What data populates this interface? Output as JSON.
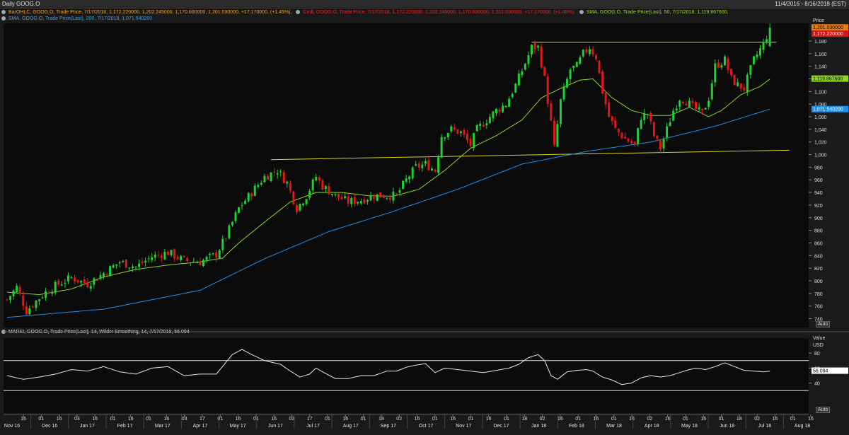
{
  "header": {
    "title": "Daily GOOG.O",
    "date_range": "11/4/2016 - 8/16/2018 (EST)"
  },
  "legends": {
    "bar_ohlc": "BarOHLC, GOOG.O, Trade Price,  7/17/2018, 1,172.220000, 1,202.245000, 1,170.600000, 1,201.030000, +17.170000, (+1.45%),",
    "candle": "Cndl, GOOG.O, Trade Price,  7/17/2018, 1,172.220000, 1,202.245000, 1,170.600000, 1,201.030000, +17.170000, (+1.45%),",
    "sma50": "SMA, GOOG.O, Trade Price(Last),  50, 7/17/2018, 1,119.867600,",
    "sma200": "SMA, GOOG.O, Trade Price(Last),  200, 7/17/2018, 1,071.540200",
    "rsi": "MARSI, GOOG.O, Trade Price(Last),  14, Wilder Smoothing, 14, 7/17/2018, 56.094"
  },
  "price_axis": {
    "title": "Price",
    "currency": "USD",
    "auto_label": "Auto",
    "badges": {
      "close": "1,201.030000",
      "open": "1,172.220000",
      "sma50": "1,119.867600",
      "sma200": "1,071.540200"
    }
  },
  "rsi_axis": {
    "title": "Value",
    "currency": "USD",
    "auto_label": "Auto",
    "badge": "56.094"
  },
  "colors": {
    "up": "#1fd12e",
    "down": "#e01818",
    "sma50": "#8fd61a",
    "sma200": "#1e8fe8",
    "trendline": "#d9d921",
    "rsi": "#e8e8e8",
    "badge_close": "#e87d0e",
    "badge_open": "#d11414",
    "badge_sma50": "#8fd61a",
    "badge_sma200": "#1e8fe8"
  },
  "chart_data": [
    {
      "type": "candlestick",
      "series_name": "GOOG.O",
      "x_axis": {
        "day_ticks": [
          "16",
          "01",
          "16",
          "03",
          "16",
          "01",
          "16",
          "01",
          "16",
          "03",
          "17",
          "01",
          "16",
          "01",
          "16",
          "03",
          "17",
          "01",
          "16",
          "01",
          "18",
          "02",
          "16",
          "01",
          "16",
          "01",
          "16",
          "01",
          "18",
          "02",
          "16",
          "01",
          "16",
          "01",
          "16",
          "02",
          "16",
          "01",
          "16",
          "01",
          "18",
          "02",
          "16",
          "01",
          "16"
        ],
        "month_labels": [
          "Nov 16",
          "Dec 16",
          "Jan 17",
          "Feb 17",
          "Mar 17",
          "Apr 17",
          "May 17",
          "Jun 17",
          "Jul 17",
          "Aug 17",
          "Sep 17",
          "Oct 17",
          "Nov 17",
          "Dec 17",
          "Jan 18",
          "Feb 18",
          "Mar 18",
          "Apr 18",
          "May 18",
          "Jun 18",
          "Jul 18",
          "Aug 18"
        ]
      },
      "y_ticks": [
        "1,180",
        "1,160",
        "1,140",
        "1,120",
        "1,100",
        "1,080",
        "1,060",
        "1,040",
        "1,020",
        "1,000",
        "980",
        "960",
        "940",
        "920",
        "900",
        "880",
        "860",
        "840",
        "820",
        "800",
        "780",
        "760",
        "740"
      ],
      "ylim": [
        726,
        1208
      ],
      "price_anchors": [
        [
          0,
          770
        ],
        [
          3,
          790
        ],
        [
          6,
          752
        ],
        [
          9,
          768
        ],
        [
          12,
          782
        ],
        [
          16,
          795
        ],
        [
          20,
          805
        ],
        [
          25,
          795
        ],
        [
          30,
          812
        ],
        [
          35,
          830
        ],
        [
          40,
          822
        ],
        [
          45,
          838
        ],
        [
          50,
          845
        ],
        [
          55,
          832
        ],
        [
          60,
          830
        ],
        [
          65,
          842
        ],
        [
          68,
          870
        ],
        [
          72,
          915
        ],
        [
          76,
          940
        ],
        [
          80,
          965
        ],
        [
          84,
          975
        ],
        [
          87,
          955
        ],
        [
          90,
          915
        ],
        [
          93,
          935
        ],
        [
          96,
          965
        ],
        [
          98,
          950
        ],
        [
          102,
          935
        ],
        [
          106,
          925
        ],
        [
          110,
          928
        ],
        [
          114,
          935
        ],
        [
          118,
          935
        ],
        [
          121,
          935
        ],
        [
          124,
          960
        ],
        [
          127,
          980
        ],
        [
          130,
          985
        ],
        [
          133,
          975
        ],
        [
          135,
          1030
        ],
        [
          138,
          1040
        ],
        [
          141,
          1035
        ],
        [
          144,
          1015
        ],
        [
          146,
          1040
        ],
        [
          149,
          1055
        ],
        [
          152,
          1070
        ],
        [
          155,
          1080
        ],
        [
          158,
          1110
        ],
        [
          161,
          1145
        ],
        [
          163,
          1170
        ],
        [
          165,
          1170
        ],
        [
          167,
          1120
        ],
        [
          169,
          1050
        ],
        [
          170,
          1010
        ],
        [
          172,
          1085
        ],
        [
          175,
          1135
        ],
        [
          177,
          1140
        ],
        [
          179,
          1160
        ],
        [
          181,
          1170
        ],
        [
          183,
          1155
        ],
        [
          185,
          1100
        ],
        [
          187,
          1060
        ],
        [
          189,
          1040
        ],
        [
          192,
          1025
        ],
        [
          195,
          1015
        ],
        [
          197,
          1060
        ],
        [
          199,
          1065
        ],
        [
          201,
          1030
        ],
        [
          203,
          1010
        ],
        [
          205,
          1040
        ],
        [
          207,
          1070
        ],
        [
          209,
          1090
        ],
        [
          211,
          1085
        ],
        [
          213,
          1075
        ],
        [
          216,
          1065
        ],
        [
          218,
          1090
        ],
        [
          220,
          1140
        ],
        [
          223,
          1150
        ],
        [
          225,
          1120
        ],
        [
          227,
          1110
        ],
        [
          229,
          1105
        ],
        [
          232,
          1150
        ],
        [
          235,
          1175
        ],
        [
          237,
          1201
        ]
      ],
      "sma50_anchors": [
        [
          0,
          782
        ],
        [
          10,
          778
        ],
        [
          20,
          787
        ],
        [
          30,
          806
        ],
        [
          40,
          818
        ],
        [
          50,
          825
        ],
        [
          60,
          830
        ],
        [
          67,
          836
        ],
        [
          72,
          860
        ],
        [
          80,
          893
        ],
        [
          88,
          925
        ],
        [
          96,
          940
        ],
        [
          104,
          940
        ],
        [
          112,
          935
        ],
        [
          120,
          934
        ],
        [
          128,
          945
        ],
        [
          136,
          975
        ],
        [
          144,
          1010
        ],
        [
          152,
          1030
        ],
        [
          160,
          1055
        ],
        [
          166,
          1090
        ],
        [
          172,
          1105
        ],
        [
          178,
          1118
        ],
        [
          182,
          1120
        ],
        [
          188,
          1090
        ],
        [
          194,
          1070
        ],
        [
          200,
          1062
        ],
        [
          206,
          1062
        ],
        [
          212,
          1075
        ],
        [
          218,
          1060
        ],
        [
          222,
          1070
        ],
        [
          228,
          1095
        ],
        [
          234,
          1108
        ],
        [
          237,
          1120
        ]
      ],
      "sma200_anchors": [
        [
          0,
          742
        ],
        [
          30,
          755
        ],
        [
          60,
          785
        ],
        [
          80,
          835
        ],
        [
          100,
          878
        ],
        [
          120,
          910
        ],
        [
          140,
          945
        ],
        [
          160,
          985
        ],
        [
          180,
          1005
        ],
        [
          200,
          1020
        ],
        [
          220,
          1045
        ],
        [
          237,
          1072
        ]
      ],
      "trendlines": [
        {
          "from": [
            82,
            992
          ],
          "to": [
            243,
            1007
          ]
        },
        {
          "from": [
            163,
            1178
          ],
          "to": [
            239,
            1178
          ]
        }
      ]
    },
    {
      "type": "line",
      "series_name": "MARSI",
      "ylim": [
        0,
        100
      ],
      "y_ticks": [
        80,
        60,
        40
      ],
      "reference_lines": [
        70,
        30
      ],
      "rsi_anchors": [
        [
          0,
          50
        ],
        [
          5,
          45
        ],
        [
          10,
          48
        ],
        [
          15,
          52
        ],
        [
          20,
          58
        ],
        [
          25,
          56
        ],
        [
          30,
          62
        ],
        [
          35,
          55
        ],
        [
          40,
          52
        ],
        [
          45,
          60
        ],
        [
          50,
          62
        ],
        [
          55,
          50
        ],
        [
          60,
          52
        ],
        [
          65,
          52
        ],
        [
          70,
          78
        ],
        [
          73,
          85
        ],
        [
          76,
          78
        ],
        [
          80,
          70
        ],
        [
          85,
          65
        ],
        [
          88,
          56
        ],
        [
          91,
          48
        ],
        [
          94,
          52
        ],
        [
          96,
          60
        ],
        [
          98,
          55
        ],
        [
          102,
          46
        ],
        [
          106,
          46
        ],
        [
          110,
          50
        ],
        [
          114,
          50
        ],
        [
          118,
          56
        ],
        [
          121,
          56
        ],
        [
          124,
          61
        ],
        [
          127,
          64
        ],
        [
          130,
          66
        ],
        [
          133,
          54
        ],
        [
          136,
          60
        ],
        [
          140,
          58
        ],
        [
          144,
          56
        ],
        [
          148,
          54
        ],
        [
          152,
          57
        ],
        [
          156,
          60
        ],
        [
          159,
          65
        ],
        [
          162,
          74
        ],
        [
          165,
          78
        ],
        [
          167,
          70
        ],
        [
          169,
          50
        ],
        [
          171,
          45
        ],
        [
          174,
          55
        ],
        [
          177,
          57
        ],
        [
          180,
          58
        ],
        [
          182,
          56
        ],
        [
          185,
          48
        ],
        [
          188,
          44
        ],
        [
          191,
          38
        ],
        [
          194,
          40
        ],
        [
          197,
          47
        ],
        [
          200,
          50
        ],
        [
          203,
          48
        ],
        [
          206,
          50
        ],
        [
          209,
          54
        ],
        [
          212,
          58
        ],
        [
          214,
          60
        ],
        [
          217,
          58
        ],
        [
          220,
          62
        ],
        [
          223,
          67
        ],
        [
          226,
          62
        ],
        [
          229,
          57
        ],
        [
          232,
          56
        ],
        [
          235,
          55
        ],
        [
          237,
          56
        ]
      ]
    }
  ]
}
